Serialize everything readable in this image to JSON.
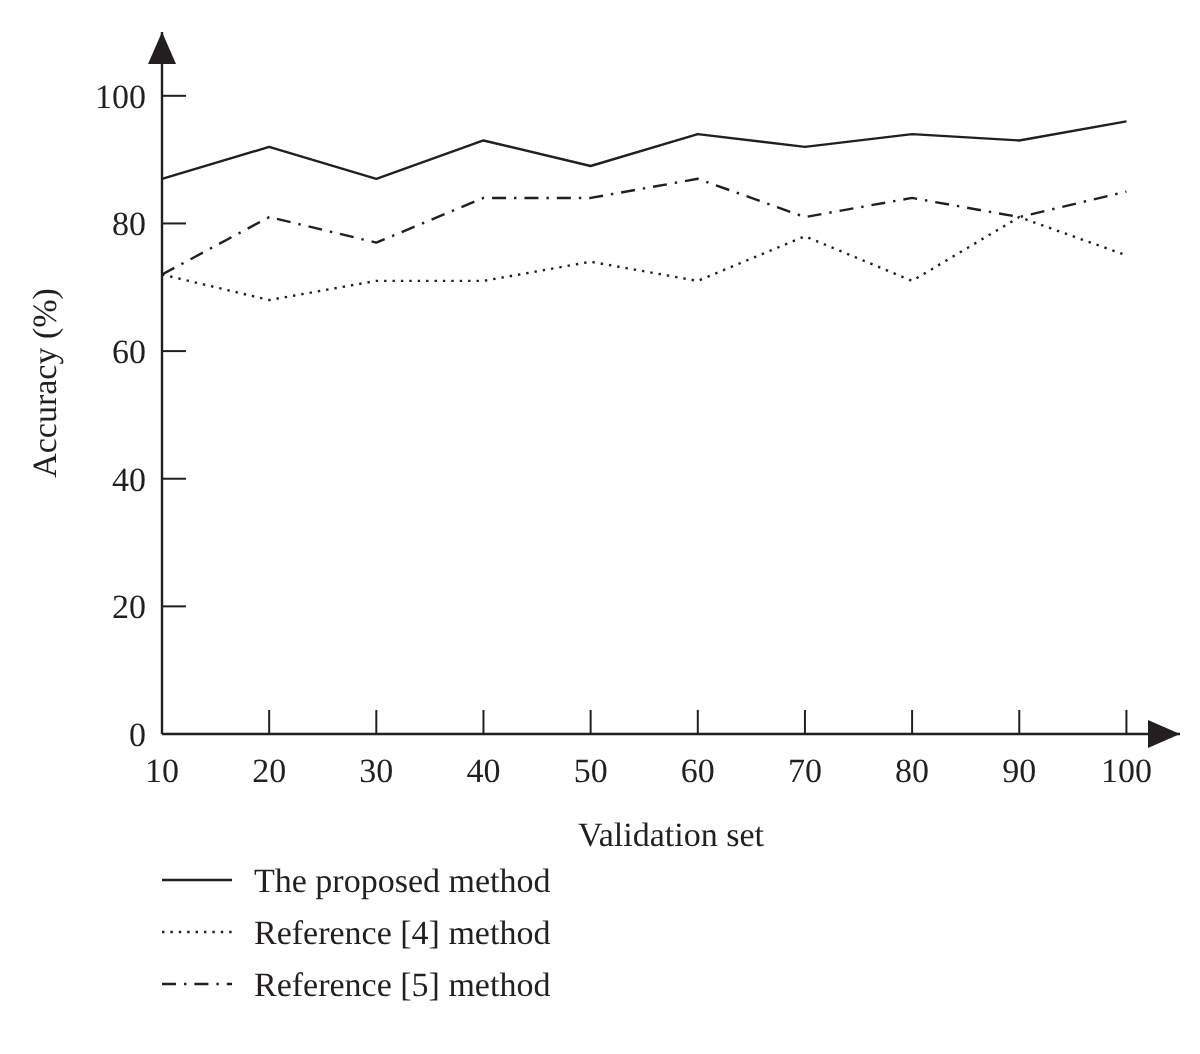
{
  "chart_data": {
    "type": "line",
    "xlabel": "Validation set",
    "ylabel": "Accuracy (%)",
    "x": [
      10,
      20,
      30,
      40,
      50,
      60,
      70,
      80,
      90,
      100
    ],
    "xlim": [
      10,
      105
    ],
    "xticks": [
      10,
      20,
      30,
      40,
      50,
      60,
      70,
      80,
      90,
      100
    ],
    "ylim": [
      0,
      110
    ],
    "yticks": [
      0,
      20,
      40,
      60,
      80,
      100
    ],
    "grid": false,
    "legend": "bottom",
    "marker": "none",
    "series": [
      {
        "name": "The proposed method",
        "color": "#231f20",
        "line_style": "solid",
        "values": [
          87,
          92,
          87,
          93,
          89,
          94,
          92,
          94,
          93,
          96
        ]
      },
      {
        "name": "Reference [4] method",
        "color": "#231f20",
        "line_style": "dotted",
        "values": [
          72,
          68,
          71,
          71,
          74,
          71,
          78,
          71,
          81,
          75
        ]
      },
      {
        "name": "Reference [5] method",
        "color": "#231f20",
        "line_style": "dashdot",
        "values": [
          72,
          81,
          77,
          84,
          84,
          87,
          81,
          84,
          81,
          85
        ]
      }
    ]
  }
}
